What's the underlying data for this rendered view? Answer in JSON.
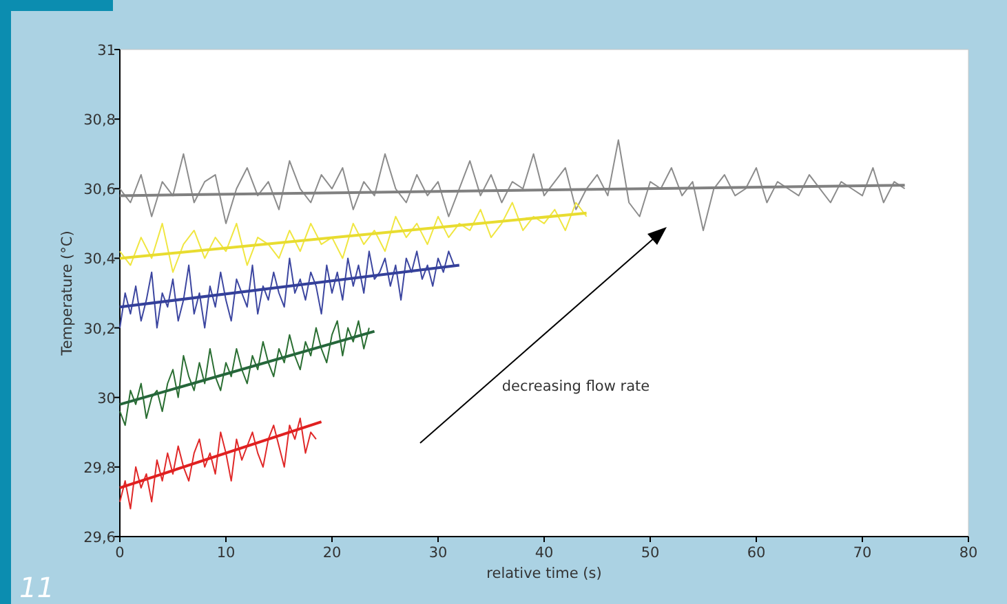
{
  "chart_data": {
    "type": "line",
    "xlabel": "relative time (s)",
    "ylabel": "Temperature (°C)",
    "xlim": [
      0,
      80
    ],
    "xticks": [
      0,
      10,
      20,
      30,
      40,
      50,
      60,
      70,
      80
    ],
    "ylim": [
      29.6,
      31
    ],
    "yticks": [
      {
        "value": 29.6,
        "label": "29,6"
      },
      {
        "value": 29.8,
        "label": "29,8"
      },
      30,
      {
        "value": 30.2,
        "label": "30,2"
      },
      {
        "value": 30.4,
        "label": "30,4"
      },
      {
        "value": 30.6,
        "label": "30,6"
      },
      {
        "value": 30.8,
        "label": "30,8"
      },
      31
    ],
    "grid": false,
    "marker": "none",
    "line_style": "solid",
    "annotations": [
      "decreasing flow rate",
      "11"
    ],
    "series": [
      {
        "color": "#8c8c8c",
        "x": [
          0,
          1,
          2,
          3,
          4,
          5,
          6,
          7,
          8,
          9,
          10,
          11,
          12,
          13,
          14,
          15,
          16,
          17,
          18,
          19,
          20,
          21,
          22,
          23,
          24,
          25,
          26,
          27,
          28,
          29,
          30,
          31,
          32,
          33,
          34,
          35,
          36,
          37,
          38,
          39,
          40,
          41,
          42,
          43,
          44,
          45,
          46,
          47,
          48,
          49,
          50,
          51,
          52,
          53,
          54,
          55,
          56,
          57,
          58,
          59,
          60,
          61,
          62,
          63,
          64,
          65,
          66,
          67,
          68,
          69,
          70,
          71,
          72,
          73,
          74
        ],
        "values": [
          30.6,
          30.56,
          30.64,
          30.52,
          30.62,
          30.58,
          30.7,
          30.56,
          30.62,
          30.64,
          30.5,
          30.6,
          30.66,
          30.58,
          30.62,
          30.54,
          30.68,
          30.6,
          30.56,
          30.64,
          30.6,
          30.66,
          30.54,
          30.62,
          30.58,
          30.7,
          30.6,
          30.56,
          30.64,
          30.58,
          30.62,
          30.52,
          30.6,
          30.68,
          30.58,
          30.64,
          30.56,
          30.62,
          30.6,
          30.7,
          30.58,
          30.62,
          30.66,
          30.54,
          30.6,
          30.64,
          30.58,
          30.74,
          30.56,
          30.52,
          30.62,
          30.6,
          30.66,
          30.58,
          30.62,
          30.48,
          30.6,
          30.64,
          30.58,
          30.6,
          30.66,
          30.56,
          30.62,
          30.6,
          30.58,
          30.64,
          30.6,
          30.56,
          30.62,
          30.6,
          30.58,
          30.66,
          30.56,
          30.62,
          30.6
        ]
      },
      {
        "color": "#f0e641",
        "x": [
          0,
          1,
          2,
          3,
          4,
          5,
          6,
          7,
          8,
          9,
          10,
          11,
          12,
          13,
          14,
          15,
          16,
          17,
          18,
          19,
          20,
          21,
          22,
          23,
          24,
          25,
          26,
          27,
          28,
          29,
          30,
          31,
          32,
          33,
          34,
          35,
          36,
          37,
          38,
          39,
          40,
          41,
          42,
          43,
          44
        ],
        "values": [
          30.42,
          30.38,
          30.46,
          30.4,
          30.5,
          30.36,
          30.44,
          30.48,
          30.4,
          30.46,
          30.42,
          30.5,
          30.38,
          30.46,
          30.44,
          30.4,
          30.48,
          30.42,
          30.5,
          30.44,
          30.46,
          30.4,
          30.5,
          30.44,
          30.48,
          30.42,
          30.52,
          30.46,
          30.5,
          30.44,
          30.52,
          30.46,
          30.5,
          30.48,
          30.54,
          30.46,
          30.5,
          30.56,
          30.48,
          30.52,
          30.5,
          30.54,
          30.48,
          30.56,
          30.52
        ]
      },
      {
        "color": "#3c46a0",
        "x": [
          0,
          0.5,
          1,
          1.5,
          2,
          2.5,
          3,
          3.5,
          4,
          4.5,
          5,
          5.5,
          6,
          6.5,
          7,
          7.5,
          8,
          8.5,
          9,
          9.5,
          10,
          10.5,
          11,
          11.5,
          12,
          12.5,
          13,
          13.5,
          14,
          14.5,
          15,
          15.5,
          16,
          16.5,
          17,
          17.5,
          18,
          18.5,
          19,
          19.5,
          20,
          20.5,
          21,
          21.5,
          22,
          22.5,
          23,
          23.5,
          24,
          24.5,
          25,
          25.5,
          26,
          26.5,
          27,
          27.5,
          28,
          28.5,
          29,
          29.5,
          30,
          30.5,
          31,
          31.5
        ],
        "values": [
          30.2,
          30.3,
          30.24,
          30.32,
          30.22,
          30.28,
          30.36,
          30.2,
          30.3,
          30.26,
          30.34,
          30.22,
          30.28,
          30.38,
          30.24,
          30.3,
          30.2,
          30.32,
          30.26,
          30.36,
          30.28,
          30.22,
          30.34,
          30.3,
          30.26,
          30.38,
          30.24,
          30.32,
          30.28,
          30.36,
          30.3,
          30.26,
          30.4,
          30.3,
          30.34,
          30.28,
          30.36,
          30.32,
          30.24,
          30.38,
          30.3,
          30.36,
          30.28,
          30.4,
          30.32,
          30.38,
          30.3,
          30.42,
          30.34,
          30.36,
          30.4,
          30.32,
          30.38,
          30.28,
          30.4,
          30.36,
          30.42,
          30.34,
          30.38,
          30.32,
          30.4,
          30.36,
          30.42,
          30.38
        ]
      },
      {
        "color": "#2a6e32",
        "x": [
          0,
          0.5,
          1,
          1.5,
          2,
          2.5,
          3,
          3.5,
          4,
          4.5,
          5,
          5.5,
          6,
          6.5,
          7,
          7.5,
          8,
          8.5,
          9,
          9.5,
          10,
          10.5,
          11,
          11.5,
          12,
          12.5,
          13,
          13.5,
          14,
          14.5,
          15,
          15.5,
          16,
          16.5,
          17,
          17.5,
          18,
          18.5,
          19,
          19.5,
          20,
          20.5,
          21,
          21.5,
          22,
          22.5,
          23,
          23.5
        ],
        "values": [
          29.96,
          29.92,
          30.02,
          29.98,
          30.04,
          29.94,
          30.0,
          30.02,
          29.96,
          30.04,
          30.08,
          30.0,
          30.12,
          30.06,
          30.02,
          30.1,
          30.04,
          30.14,
          30.06,
          30.02,
          30.1,
          30.06,
          30.14,
          30.08,
          30.04,
          30.12,
          30.08,
          30.16,
          30.1,
          30.06,
          30.14,
          30.1,
          30.18,
          30.12,
          30.08,
          30.16,
          30.12,
          30.2,
          30.14,
          30.1,
          30.18,
          30.22,
          30.12,
          30.2,
          30.16,
          30.22,
          30.14,
          30.2
        ]
      },
      {
        "color": "#e02828",
        "x": [
          0,
          0.5,
          1,
          1.5,
          2,
          2.5,
          3,
          3.5,
          4,
          4.5,
          5,
          5.5,
          6,
          6.5,
          7,
          7.5,
          8,
          8.5,
          9,
          9.5,
          10,
          10.5,
          11,
          11.5,
          12,
          12.5,
          13,
          13.5,
          14,
          14.5,
          15,
          15.5,
          16,
          16.5,
          17,
          17.5,
          18,
          18.5
        ],
        "values": [
          29.7,
          29.76,
          29.68,
          29.8,
          29.74,
          29.78,
          29.7,
          29.82,
          29.76,
          29.84,
          29.78,
          29.86,
          29.8,
          29.76,
          29.84,
          29.88,
          29.8,
          29.84,
          29.78,
          29.9,
          29.84,
          29.76,
          29.88,
          29.82,
          29.86,
          29.9,
          29.84,
          29.8,
          29.88,
          29.92,
          29.86,
          29.8,
          29.92,
          29.88,
          29.94,
          29.84,
          29.9,
          29.88
        ]
      },
      {
        "color": "#808080",
        "x": [
          0,
          74
        ],
        "values": [
          30.58,
          30.61
        ]
      },
      {
        "color": "#e8dc30",
        "x": [
          0,
          44
        ],
        "values": [
          30.4,
          30.53
        ]
      },
      {
        "color": "#34409a",
        "x": [
          0,
          32
        ],
        "values": [
          30.26,
          30.38
        ]
      },
      {
        "color": "#25663a",
        "x": [
          0,
          24
        ],
        "values": [
          29.98,
          30.19
        ]
      },
      {
        "color": "#e02020",
        "x": [
          0,
          19
        ],
        "values": [
          29.74,
          29.93
        ]
      }
    ]
  }
}
